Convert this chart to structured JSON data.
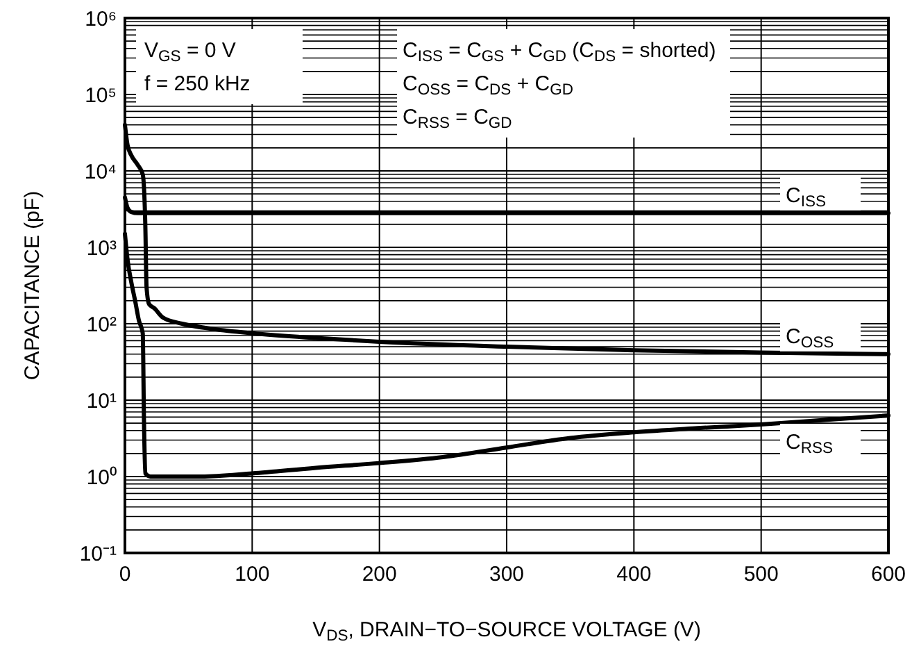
{
  "chart_data": {
    "type": "line",
    "xlabel": "V$_{DS}$, DRAIN−TO−SOURCE VOLTAGE (V)",
    "ylabel": "CAPACITANCE (pF)",
    "xlim": [
      0,
      600
    ],
    "xticks": [
      0,
      100,
      200,
      300,
      400,
      500,
      600
    ],
    "ylim": [
      0.1,
      1000000
    ],
    "yticks": [
      {
        "value": 0.1,
        "label": "10⁻¹"
      },
      {
        "value": 1,
        "label": "10⁰"
      },
      {
        "value": 10,
        "label": "10¹"
      },
      {
        "value": 100,
        "label": "10²"
      },
      {
        "value": 1000,
        "label": "10³"
      },
      {
        "value": 10000,
        "label": "10⁴"
      },
      {
        "value": 100000,
        "label": "10⁵"
      },
      {
        "value": 1000000,
        "label": "10⁶"
      }
    ],
    "log": "y",
    "grid": true,
    "marker": "none",
    "line_style": "solid",
    "annotations": [
      "V$_{GS}$ = 0 V",
      "f = 250 kHz",
      "C$_{ISS}$ = C$_{GS}$ + C$_{GD}$ (C$_{DS}$ = shorted)",
      "C$_{OSS}$ = C$_{DS}$ + C$_{GD}$",
      "C$_{RSS}$ = C$_{GD}$"
    ],
    "series": [
      {
        "name": "C$_{ISS}$",
        "color": "#000000",
        "x": [
          0,
          2,
          5,
          10,
          100,
          200,
          300,
          400,
          500,
          600
        ],
        "values": [
          4500,
          3300,
          2900,
          2800,
          2800,
          2800,
          2800,
          2800,
          2800,
          2800
        ]
      },
      {
        "name": "C$_{OSS}$",
        "color": "#000000",
        "x": [
          0,
          2,
          5,
          10,
          14,
          16,
          17,
          19,
          23,
          30,
          45,
          70,
          100,
          150,
          200,
          300,
          400,
          500,
          600
        ],
        "values": [
          40000,
          22000,
          16000,
          12000,
          9000,
          2000,
          300,
          180,
          160,
          120,
          100,
          85,
          75,
          65,
          58,
          50,
          45,
          42,
          40
        ]
      },
      {
        "name": "C$_{RSS}$",
        "color": "#000000",
        "x": [
          0,
          2,
          5,
          8,
          11,
          14,
          15,
          16,
          20,
          60,
          100,
          150,
          200,
          250,
          300,
          350,
          400,
          450,
          500,
          550,
          600
        ],
        "values": [
          1500,
          700,
          350,
          200,
          110,
          75,
          5,
          1.1,
          1.0,
          1.0,
          1.1,
          1.3,
          1.5,
          1.8,
          2.4,
          3.2,
          3.8,
          4.3,
          4.8,
          5.5,
          6.3
        ]
      }
    ]
  }
}
